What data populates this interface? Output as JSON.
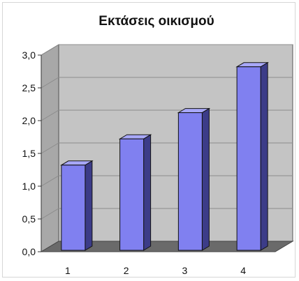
{
  "chart_data": {
    "type": "bar",
    "title": "Εκτάσεις οικισμού",
    "categories": [
      "1",
      "2",
      "3",
      "4"
    ],
    "values": [
      1.3,
      1.7,
      2.1,
      2.8
    ],
    "ylim": [
      0,
      3
    ],
    "yticks": [
      "0,0",
      "0,5",
      "1,0",
      "1,5",
      "2,0",
      "2,5",
      "3,0"
    ],
    "grid": true,
    "legend": "none",
    "style": "3d-column",
    "colors": {
      "bar_front": "#8080f0",
      "bar_side": "#3c3c88",
      "bar_top": "#a8a8f8",
      "plot_wall": "#c4c4c4",
      "plot_floor": "#6a6a6a",
      "side_wall": "#a8a8a8",
      "gridline": "#8c8c8c"
    }
  }
}
